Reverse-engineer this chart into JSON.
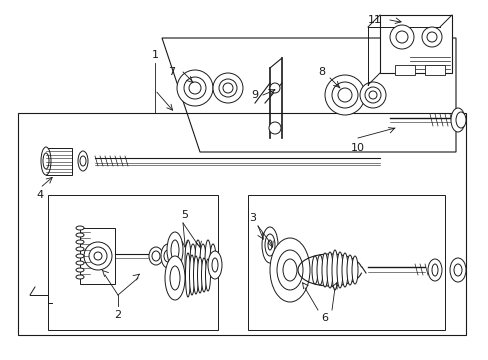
{
  "bg_color": "#ffffff",
  "lc": "#1a1a1a",
  "lw": 0.7,
  "fig_w": 4.89,
  "fig_h": 3.6,
  "dpi": 100
}
